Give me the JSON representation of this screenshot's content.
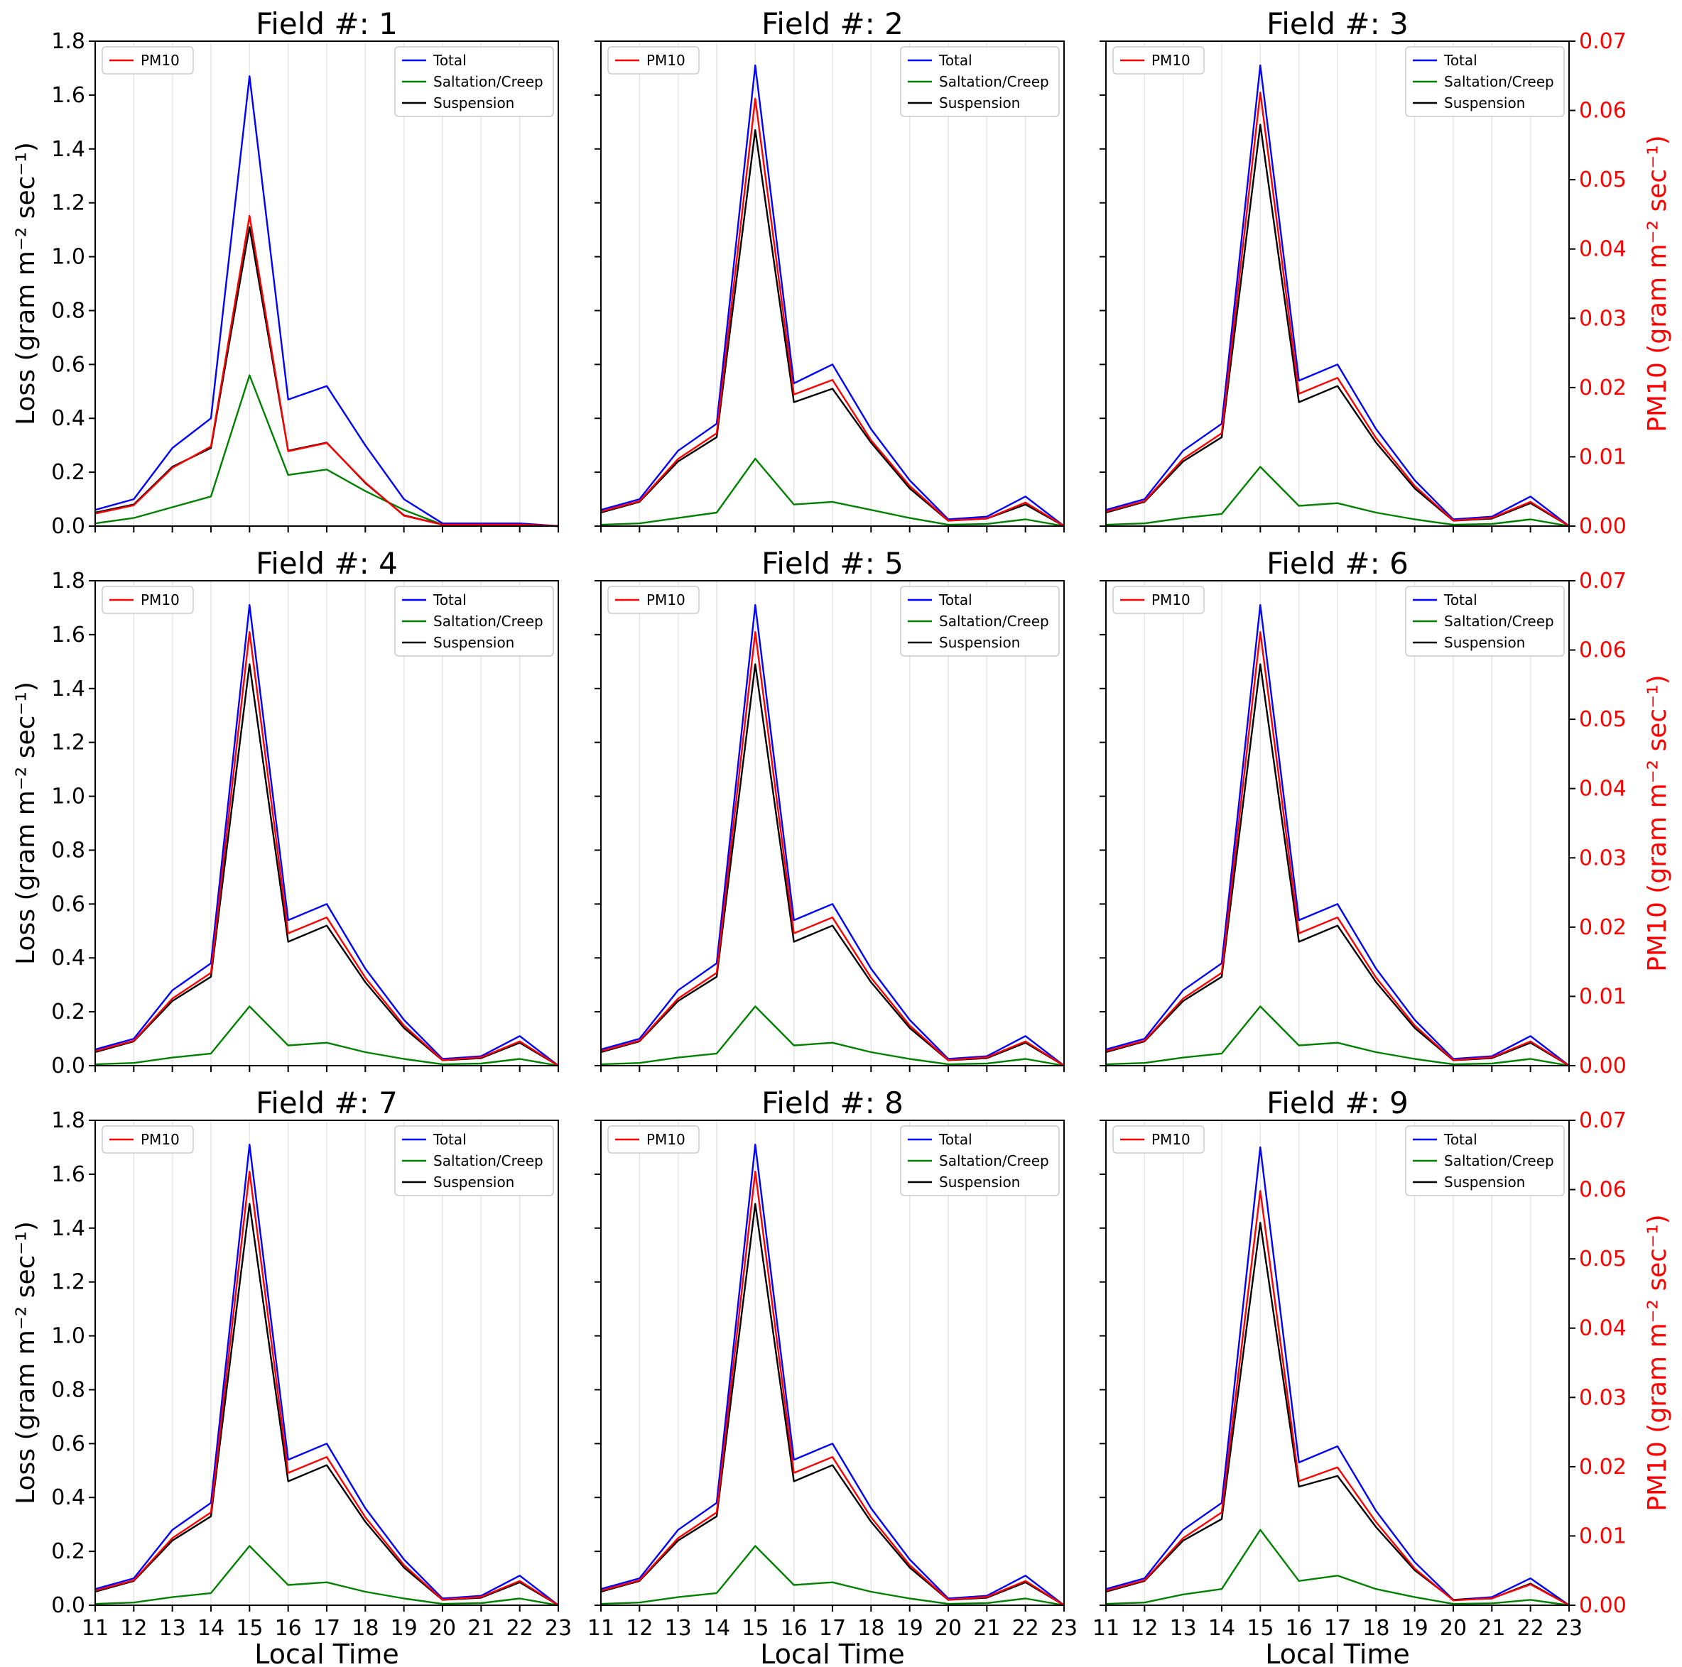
{
  "chart_data": {
    "type": "line",
    "x_label": "Local Time",
    "y_left_label": "Loss (gram m⁻² sec⁻¹)",
    "y_right_label": "PM10 (gram m⁻² sec⁻¹)",
    "x": [
      11,
      12,
      13,
      14,
      15,
      16,
      17,
      18,
      19,
      20,
      21,
      22,
      23
    ],
    "x_ticks": [
      "11",
      "12",
      "13",
      "14",
      "15",
      "16",
      "17",
      "18",
      "19",
      "20",
      "21",
      "22",
      "23"
    ],
    "y_left_ticks": [
      "0.0",
      "0.2",
      "0.4",
      "0.6",
      "0.8",
      "1.0",
      "1.2",
      "1.4",
      "1.6",
      "1.8"
    ],
    "y_right_ticks": [
      "0.00",
      "0.01",
      "0.02",
      "0.03",
      "0.04",
      "0.05",
      "0.06",
      "0.07"
    ],
    "ylim_left": [
      0,
      1.8
    ],
    "ylim_right": [
      0,
      0.07
    ],
    "legend_left": [
      "PM10"
    ],
    "legend_right": [
      "Total",
      "Saltation/Creep",
      "Suspension"
    ],
    "colors": {
      "Total": "#0000ff",
      "Saltation/Creep": "#008000",
      "Suspension": "#000000",
      "PM10": "#ff0000",
      "right_axis": "#ff0000"
    },
    "panels": [
      {
        "title": "Field #: 1",
        "series": [
          {
            "name": "Total",
            "values": [
              0.06,
              0.1,
              0.29,
              0.4,
              1.67,
              0.47,
              0.52,
              0.3,
              0.1,
              0.01,
              0.01,
              0.01,
              0.0
            ]
          },
          {
            "name": "Saltation/Creep",
            "values": [
              0.01,
              0.03,
              0.07,
              0.11,
              0.56,
              0.19,
              0.21,
              0.13,
              0.06,
              0.005,
              0.005,
              0.005,
              0.0
            ]
          },
          {
            "name": "Suspension",
            "values": [
              0.05,
              0.08,
              0.22,
              0.29,
              1.11,
              0.28,
              0.31,
              0.16,
              0.04,
              0.005,
              0.005,
              0.005,
              0.0
            ]
          },
          {
            "name": "PM10",
            "axis": "right",
            "values": [
              0.0018,
              0.003,
              0.0084,
              0.0115,
              0.0448,
              0.0108,
              0.012,
              0.0063,
              0.0015,
              0.0002,
              0.0002,
              0.0002,
              0.0
            ]
          }
        ]
      },
      {
        "title": "Field #: 2",
        "series": [
          {
            "name": "Total",
            "values": [
              0.06,
              0.1,
              0.28,
              0.38,
              1.71,
              0.53,
              0.6,
              0.36,
              0.17,
              0.025,
              0.035,
              0.11,
              0.0
            ]
          },
          {
            "name": "Saltation/Creep",
            "values": [
              0.005,
              0.01,
              0.03,
              0.05,
              0.25,
              0.08,
              0.09,
              0.06,
              0.03,
              0.005,
              0.008,
              0.025,
              0.0
            ]
          },
          {
            "name": "Suspension",
            "values": [
              0.05,
              0.09,
              0.24,
              0.33,
              1.47,
              0.46,
              0.51,
              0.31,
              0.14,
              0.02,
              0.028,
              0.08,
              0.0
            ]
          },
          {
            "name": "PM10",
            "axis": "right",
            "values": [
              0.0021,
              0.0036,
              0.0097,
              0.0134,
              0.0617,
              0.019,
              0.0211,
              0.0124,
              0.0058,
              0.0008,
              0.0011,
              0.0034,
              0.0
            ]
          }
        ]
      },
      {
        "title": "Field #: 3",
        "series": [
          {
            "name": "Total",
            "values": [
              0.06,
              0.1,
              0.28,
              0.38,
              1.71,
              0.54,
              0.6,
              0.36,
              0.17,
              0.025,
              0.035,
              0.11,
              0.0
            ]
          },
          {
            "name": "Saltation/Creep",
            "values": [
              0.005,
              0.01,
              0.03,
              0.045,
              0.22,
              0.075,
              0.085,
              0.05,
              0.025,
              0.005,
              0.008,
              0.025,
              0.0
            ]
          },
          {
            "name": "Suspension",
            "values": [
              0.05,
              0.09,
              0.24,
              0.33,
              1.49,
              0.46,
              0.52,
              0.31,
              0.14,
              0.02,
              0.028,
              0.085,
              0.0
            ]
          },
          {
            "name": "PM10",
            "axis": "right",
            "values": [
              0.0021,
              0.0036,
              0.0097,
              0.0134,
              0.0626,
              0.0191,
              0.0214,
              0.0127,
              0.0058,
              0.0008,
              0.0012,
              0.0035,
              0.0
            ]
          }
        ]
      },
      {
        "title": "Field #: 4",
        "series": [
          {
            "name": "Total",
            "values": [
              0.06,
              0.1,
              0.28,
              0.38,
              1.71,
              0.54,
              0.6,
              0.36,
              0.17,
              0.025,
              0.035,
              0.11,
              0.0
            ]
          },
          {
            "name": "Saltation/Creep",
            "values": [
              0.005,
              0.01,
              0.03,
              0.045,
              0.22,
              0.075,
              0.085,
              0.05,
              0.025,
              0.005,
              0.008,
              0.025,
              0.0
            ]
          },
          {
            "name": "Suspension",
            "values": [
              0.05,
              0.09,
              0.24,
              0.33,
              1.49,
              0.46,
              0.52,
              0.31,
              0.14,
              0.02,
              0.028,
              0.085,
              0.0
            ]
          },
          {
            "name": "PM10",
            "axis": "right",
            "values": [
              0.0021,
              0.0036,
              0.0097,
              0.0134,
              0.0626,
              0.0191,
              0.0214,
              0.0127,
              0.0058,
              0.0008,
              0.0012,
              0.0035,
              0.0
            ]
          }
        ]
      },
      {
        "title": "Field #: 5",
        "series": [
          {
            "name": "Total",
            "values": [
              0.06,
              0.1,
              0.28,
              0.38,
              1.71,
              0.54,
              0.6,
              0.36,
              0.17,
              0.025,
              0.035,
              0.11,
              0.0
            ]
          },
          {
            "name": "Saltation/Creep",
            "values": [
              0.005,
              0.01,
              0.03,
              0.045,
              0.22,
              0.075,
              0.085,
              0.05,
              0.025,
              0.005,
              0.008,
              0.025,
              0.0
            ]
          },
          {
            "name": "Suspension",
            "values": [
              0.05,
              0.09,
              0.24,
              0.33,
              1.49,
              0.46,
              0.52,
              0.31,
              0.14,
              0.02,
              0.028,
              0.085,
              0.0
            ]
          },
          {
            "name": "PM10",
            "axis": "right",
            "values": [
              0.0021,
              0.0036,
              0.0097,
              0.0134,
              0.0626,
              0.0191,
              0.0214,
              0.0127,
              0.0058,
              0.0008,
              0.0012,
              0.0035,
              0.0
            ]
          }
        ]
      },
      {
        "title": "Field #: 6",
        "series": [
          {
            "name": "Total",
            "values": [
              0.06,
              0.1,
              0.28,
              0.38,
              1.71,
              0.54,
              0.6,
              0.36,
              0.17,
              0.025,
              0.035,
              0.11,
              0.0
            ]
          },
          {
            "name": "Saltation/Creep",
            "values": [
              0.005,
              0.01,
              0.03,
              0.045,
              0.22,
              0.075,
              0.085,
              0.05,
              0.025,
              0.005,
              0.008,
              0.025,
              0.0
            ]
          },
          {
            "name": "Suspension",
            "values": [
              0.05,
              0.09,
              0.24,
              0.33,
              1.49,
              0.46,
              0.52,
              0.31,
              0.14,
              0.02,
              0.028,
              0.085,
              0.0
            ]
          },
          {
            "name": "PM10",
            "axis": "right",
            "values": [
              0.0021,
              0.0036,
              0.0097,
              0.0134,
              0.0626,
              0.0191,
              0.0214,
              0.0127,
              0.0058,
              0.0008,
              0.0012,
              0.0035,
              0.0
            ]
          }
        ]
      },
      {
        "title": "Field #: 7",
        "series": [
          {
            "name": "Total",
            "values": [
              0.06,
              0.1,
              0.28,
              0.38,
              1.71,
              0.54,
              0.6,
              0.36,
              0.17,
              0.025,
              0.035,
              0.11,
              0.0
            ]
          },
          {
            "name": "Saltation/Creep",
            "values": [
              0.005,
              0.01,
              0.03,
              0.045,
              0.22,
              0.075,
              0.085,
              0.05,
              0.025,
              0.005,
              0.008,
              0.025,
              0.0
            ]
          },
          {
            "name": "Suspension",
            "values": [
              0.05,
              0.09,
              0.24,
              0.33,
              1.49,
              0.46,
              0.52,
              0.31,
              0.14,
              0.02,
              0.028,
              0.085,
              0.0
            ]
          },
          {
            "name": "PM10",
            "axis": "right",
            "values": [
              0.0021,
              0.0036,
              0.0097,
              0.0134,
              0.0626,
              0.0191,
              0.0214,
              0.0127,
              0.0058,
              0.0008,
              0.0012,
              0.0035,
              0.0
            ]
          }
        ]
      },
      {
        "title": "Field #: 8",
        "series": [
          {
            "name": "Total",
            "values": [
              0.06,
              0.1,
              0.28,
              0.38,
              1.71,
              0.54,
              0.6,
              0.36,
              0.17,
              0.025,
              0.035,
              0.11,
              0.0
            ]
          },
          {
            "name": "Saltation/Creep",
            "values": [
              0.005,
              0.01,
              0.03,
              0.045,
              0.22,
              0.075,
              0.085,
              0.05,
              0.025,
              0.005,
              0.008,
              0.025,
              0.0
            ]
          },
          {
            "name": "Suspension",
            "values": [
              0.05,
              0.09,
              0.24,
              0.33,
              1.49,
              0.46,
              0.52,
              0.31,
              0.14,
              0.02,
              0.028,
              0.085,
              0.0
            ]
          },
          {
            "name": "PM10",
            "axis": "right",
            "values": [
              0.0021,
              0.0036,
              0.0097,
              0.0134,
              0.0626,
              0.0191,
              0.0214,
              0.0127,
              0.0058,
              0.0008,
              0.0012,
              0.0035,
              0.0
            ]
          }
        ]
      },
      {
        "title": "Field #: 9",
        "series": [
          {
            "name": "Total",
            "values": [
              0.06,
              0.1,
              0.28,
              0.38,
              1.7,
              0.53,
              0.59,
              0.35,
              0.16,
              0.02,
              0.03,
              0.1,
              0.0
            ]
          },
          {
            "name": "Saltation/Creep",
            "values": [
              0.005,
              0.01,
              0.04,
              0.06,
              0.28,
              0.09,
              0.11,
              0.06,
              0.03,
              0.005,
              0.007,
              0.02,
              0.0
            ]
          },
          {
            "name": "Suspension",
            "values": [
              0.05,
              0.09,
              0.24,
              0.32,
              1.42,
              0.44,
              0.48,
              0.29,
              0.13,
              0.02,
              0.025,
              0.08,
              0.0
            ]
          },
          {
            "name": "PM10",
            "axis": "right",
            "values": [
              0.0021,
              0.0036,
              0.0097,
              0.0134,
              0.0598,
              0.0179,
              0.0199,
              0.012,
              0.0053,
              0.0007,
              0.001,
              0.003,
              0.0
            ]
          }
        ]
      }
    ]
  }
}
